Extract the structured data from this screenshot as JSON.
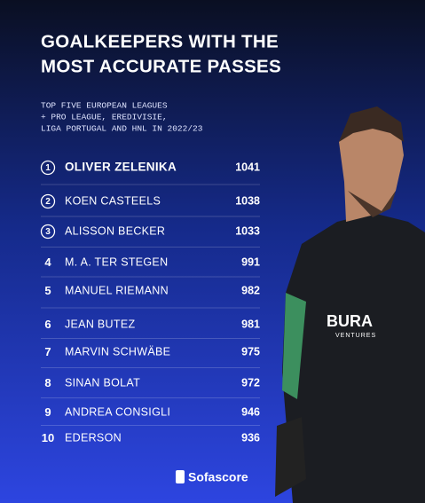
{
  "header": {
    "title_lines": [
      "GOALKEEPERS WITH THE",
      "MOST ACCURATE PASSES"
    ],
    "subtitle_lines": [
      "TOP FIVE EUROPEAN LEAGUES",
      "+ PRO LEAGUE, EREDIVISIE,",
      "LIGA PORTUGAL AND HNL IN 2022/23"
    ]
  },
  "table": {
    "rows": [
      {
        "rank": 1,
        "name": "OLIVER ZELENIKA",
        "value": 1041
      },
      {
        "rank": 2,
        "name": "KOEN CASTEELS",
        "value": 1038
      },
      {
        "rank": 3,
        "name": "ALISSON BECKER",
        "value": 1033
      },
      {
        "rank": 4,
        "name": "M. A. TER STEGEN",
        "value": 991
      },
      {
        "rank": 5,
        "name": "MANUEL RIEMANN",
        "value": 982
      },
      {
        "rank": 6,
        "name": "JEAN BUTEZ",
        "value": 981
      },
      {
        "rank": 7,
        "name": "MARVIN SCHWÄBE",
        "value": 975
      },
      {
        "rank": 8,
        "name": "SINAN BOLAT",
        "value": 972
      },
      {
        "rank": 9,
        "name": "ANDREA CONSIGLI",
        "value": 946
      },
      {
        "rank": 10,
        "name": "EDERSON",
        "value": 936
      }
    ]
  },
  "jersey_text": {
    "brand": "BURA",
    "sub": "VENTURES"
  },
  "footer": {
    "brand": "Sofascore"
  }
}
